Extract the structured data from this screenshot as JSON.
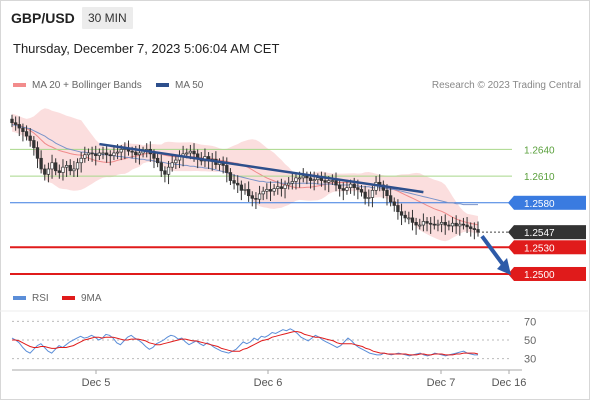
{
  "header": {
    "pair": "GBP/USD",
    "timeframe": "30 MIN",
    "timestamp": "Thursday, December 7, 2023 5:06:04 AM CET",
    "copyright": "Research © 2023 Trading Central"
  },
  "legend": {
    "ma20": {
      "label": "MA 20 + Bollinger Bands",
      "color": "#f28c8c"
    },
    "ma50": {
      "label": "MA 50",
      "color": "#2d4f8c"
    },
    "rsi": {
      "label": "RSI",
      "color": "#5b8ed8"
    },
    "rsi_ma": {
      "label": "9MA",
      "color": "#e01b1b"
    }
  },
  "chart_data": [
    {
      "type": "candlestick",
      "x_ticks": [
        "Dec 5",
        "Dec 6",
        "Dec 7",
        "Dec 16"
      ],
      "ylim": [
        1.2482,
        1.27
      ],
      "levels": [
        {
          "value": 1.264,
          "label": "1.2640",
          "kind": "resistance",
          "color": "#a8d78a"
        },
        {
          "value": 1.261,
          "label": "1.2610",
          "kind": "resistance",
          "color": "#a8d78a"
        },
        {
          "value": 1.258,
          "label": "1.2580",
          "kind": "pivot",
          "color": "#3a7be0"
        },
        {
          "value": 1.2547,
          "label": "1.2547",
          "kind": "last-price",
          "color": "#333333"
        },
        {
          "value": 1.253,
          "label": "1.2530",
          "kind": "support",
          "color": "#e01b1b"
        },
        {
          "value": 1.25,
          "label": "1.2500",
          "kind": "support",
          "color": "#e01b1b"
        }
      ],
      "closes": [
        1.267,
        1.2668,
        1.2664,
        1.266,
        1.2655,
        1.265,
        1.2642,
        1.263,
        1.2618,
        1.2612,
        1.2618,
        1.2625,
        1.2616,
        1.2614,
        1.262,
        1.2622,
        1.2616,
        1.2618,
        1.2625,
        1.263,
        1.2634,
        1.2636,
        1.2635,
        1.2633,
        1.2636,
        1.2636,
        1.2634,
        1.2633,
        1.2636,
        1.2637,
        1.264,
        1.2641,
        1.2638,
        1.2637,
        1.2634,
        1.2636,
        1.2638,
        1.264,
        1.2635,
        1.263,
        1.2625,
        1.2616,
        1.2612,
        1.262,
        1.2625,
        1.2628,
        1.2632,
        1.2635,
        1.2636,
        1.2638,
        1.2635,
        1.263,
        1.2627,
        1.2632,
        1.2627,
        1.2629,
        1.2623,
        1.2625,
        1.2622,
        1.2614,
        1.2605,
        1.2602,
        1.26,
        1.2594,
        1.2595,
        1.2588,
        1.2585,
        1.2584,
        1.259,
        1.2593,
        1.2595,
        1.2593,
        1.2596,
        1.2598,
        1.2596,
        1.26,
        1.2602,
        1.2604,
        1.2608,
        1.2608,
        1.261,
        1.2608,
        1.2605,
        1.2606,
        1.2608,
        1.2605,
        1.2603,
        1.2605,
        1.2605,
        1.26,
        1.2596,
        1.2594,
        1.2597,
        1.2601,
        1.2597,
        1.2595,
        1.2592,
        1.2585,
        1.2586,
        1.2594,
        1.2603,
        1.26,
        1.2594,
        1.2588,
        1.2581,
        1.2577,
        1.257,
        1.2566,
        1.2563,
        1.2563,
        1.2558,
        1.2555,
        1.2555,
        1.2559,
        1.2557,
        1.2556,
        1.2555,
        1.2556,
        1.2558,
        1.2555,
        1.2554,
        1.2557,
        1.2554,
        1.2556,
        1.2555,
        1.2553,
        1.2551,
        1.255,
        1.2547
      ],
      "ma50": [
        1.2668,
        1.2667,
        1.2666,
        1.2665,
        1.2664,
        1.2663,
        1.2661,
        1.2659,
        1.2657,
        1.2655,
        1.2652,
        1.265,
        1.2647,
        1.2645,
        1.2643,
        1.2641,
        1.264,
        1.2639,
        1.2638,
        1.2637,
        1.2637,
        1.2636,
        1.2636,
        1.2635,
        1.2635,
        1.2634,
        1.2634,
        1.2633,
        1.2633,
        1.2632,
        1.2632,
        1.2631,
        1.2631,
        1.263,
        1.263,
        1.2629,
        1.2629,
        1.2628,
        1.2628,
        1.2627,
        1.2626,
        1.2626,
        1.2625,
        1.2624,
        1.2624,
        1.2623,
        1.2623,
        1.2622,
        1.2622,
        1.2621,
        1.2621,
        1.262,
        1.262,
        1.2619,
        1.2619,
        1.2618,
        1.2617,
        1.2616,
        1.2615,
        1.2614,
        1.2612,
        1.2611,
        1.261,
        1.2609,
        1.2608,
        1.2607,
        1.2606,
        1.2605,
        1.2604,
        1.2604,
        1.2603,
        1.2603,
        1.2603,
        1.2603,
        1.2602,
        1.2602,
        1.2602,
        1.2602,
        1.2602,
        1.2602,
        1.2602,
        1.2602,
        1.2602,
        1.2602,
        1.2601,
        1.2601,
        1.2601,
        1.2601,
        1.2601,
        1.26,
        1.26,
        1.26,
        1.26,
        1.26,
        1.2599,
        1.2599,
        1.2598,
        1.2598,
        1.2598,
        1.2597,
        1.2597,
        1.2597,
        1.2596,
        1.2596,
        1.2595,
        1.2595,
        1.2594,
        1.2593,
        1.2592,
        1.2591,
        1.259,
        1.2589,
        1.2588,
        1.2587,
        1.2586,
        1.2585,
        1.2584,
        1.2583,
        1.2582,
        1.2581,
        1.258,
        1.258,
        1.2579,
        1.2579,
        1.2578,
        1.2578,
        1.2578,
        1.2578,
        1.2578
      ],
      "trendline": {
        "start": [
          1.2646
        ],
        "end": [
          1.2592
        ]
      }
    },
    {
      "type": "line",
      "title": "RSI",
      "ylim": [
        20,
        80
      ],
      "y_ticks": [
        70,
        50,
        30
      ],
      "rsi": [
        52,
        50,
        47,
        42,
        38,
        36,
        40,
        44,
        46,
        42,
        38,
        36,
        40,
        44,
        42,
        45,
        48,
        50,
        52,
        54,
        52,
        53,
        55,
        53,
        50,
        52,
        56,
        55,
        52,
        47,
        45,
        49,
        53,
        55,
        52,
        50,
        47,
        43,
        40,
        42,
        46,
        48,
        50,
        53,
        55,
        54,
        51,
        52,
        48,
        45,
        47,
        49,
        46,
        44,
        47,
        45,
        42,
        40,
        38,
        37,
        36,
        38,
        40,
        44,
        48,
        46,
        48,
        52,
        50,
        54,
        53,
        55,
        58,
        57,
        59,
        61,
        60,
        62,
        60,
        57,
        53,
        51,
        49,
        52,
        55,
        53,
        50,
        48,
        46,
        44,
        42,
        44,
        48,
        52,
        49,
        45,
        42,
        40,
        38,
        36,
        35,
        34,
        34,
        36,
        35,
        34,
        35,
        36,
        35,
        34,
        33,
        34,
        35,
        36,
        34,
        33,
        34,
        36,
        35,
        34,
        33,
        34,
        35,
        36,
        37,
        38,
        36,
        35,
        34,
        34
      ],
      "rsi_ma": [
        50,
        50,
        49,
        47,
        45,
        43,
        42,
        42,
        43,
        43,
        42,
        41,
        41,
        42,
        42,
        42,
        43,
        44,
        46,
        48,
        50,
        51,
        52,
        53,
        53,
        52,
        53,
        53,
        53,
        52,
        51,
        50,
        50,
        51,
        51,
        51,
        50,
        49,
        47,
        46,
        45,
        45,
        46,
        47,
        48,
        49,
        50,
        51,
        51,
        50,
        49,
        49,
        48,
        47,
        46,
        45,
        44,
        43,
        41,
        40,
        39,
        38,
        38,
        38,
        40,
        41,
        43,
        45,
        47,
        49,
        50,
        51,
        53,
        54,
        55,
        56,
        57,
        58,
        59,
        59,
        58,
        56,
        55,
        54,
        53,
        53,
        52,
        51,
        50,
        49,
        47,
        46,
        46,
        46,
        46,
        45,
        44,
        43,
        41,
        40,
        38,
        37,
        36,
        36,
        35,
        35,
        35,
        35,
        35,
        35,
        34,
        34,
        34,
        35,
        35,
        34,
        34,
        35,
        35,
        35,
        34,
        34,
        34,
        35,
        35,
        36,
        36,
        36,
        36,
        35
      ]
    }
  ]
}
